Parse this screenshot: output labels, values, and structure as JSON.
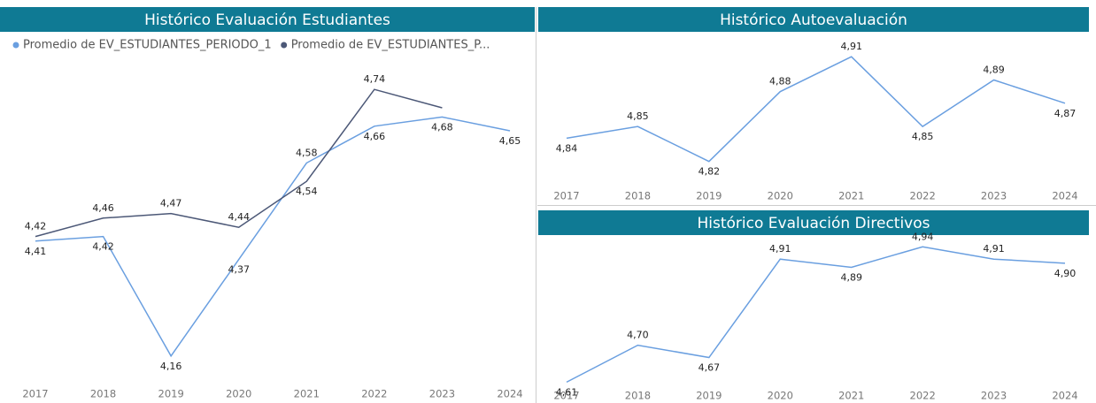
{
  "chart_data": [
    {
      "type": "line",
      "title": "Histórico Evaluación Estudiantes",
      "categories": [
        "2017",
        "2018",
        "2019",
        "2020",
        "2021",
        "2022",
        "2023",
        "2024"
      ],
      "ylim": [
        4.1,
        4.8
      ],
      "series": [
        {
          "name": "Promedio de EV_ESTUDIANTES_PERIODO_1",
          "color": "#6a9fe0",
          "values": [
            4.41,
            4.42,
            4.16,
            4.37,
            4.58,
            4.66,
            4.68,
            4.65
          ],
          "value_labels": [
            "4,41",
            "4,42",
            "4,16",
            "4,37",
            "4,58",
            "4,66",
            "4,68",
            "4,65"
          ]
        },
        {
          "name": "Promedio de EV_ESTUDIANTES_P...",
          "color": "#4c5877",
          "values": [
            4.42,
            4.46,
            4.47,
            4.44,
            4.54,
            4.74,
            4.7,
            null
          ],
          "value_labels": [
            "4,42",
            "4,46",
            "4,47",
            "4,44",
            "4,54",
            "4,74",
            null,
            null
          ]
        }
      ]
    },
    {
      "type": "line",
      "title": "Histórico Autoevaluación",
      "categories": [
        "2017",
        "2018",
        "2019",
        "2020",
        "2021",
        "2022",
        "2023",
        "2024"
      ],
      "ylim": [
        4.8,
        4.92
      ],
      "series": [
        {
          "color": "#6a9fe0",
          "values": [
            4.84,
            4.85,
            4.82,
            4.88,
            4.91,
            4.85,
            4.89,
            4.87
          ],
          "value_labels": [
            "4,84",
            "4,85",
            "4,82",
            "4,88",
            "4,91",
            "4,85",
            "4,89",
            "4,87"
          ]
        }
      ]
    },
    {
      "type": "line",
      "title": "Histórico Evaluación Directivos",
      "categories": [
        "2017",
        "2018",
        "2019",
        "2020",
        "2021",
        "2022",
        "2023",
        "2024"
      ],
      "ylim": [
        4.6,
        4.96
      ],
      "series": [
        {
          "color": "#6a9fe0",
          "values": [
            4.61,
            4.7,
            4.67,
            4.91,
            4.89,
            4.94,
            4.91,
            4.9
          ],
          "value_labels": [
            "4,61",
            "4,70",
            "4,67",
            "4,91",
            "4,89",
            "4,94",
            "4,91",
            "4,90"
          ]
        }
      ]
    }
  ]
}
